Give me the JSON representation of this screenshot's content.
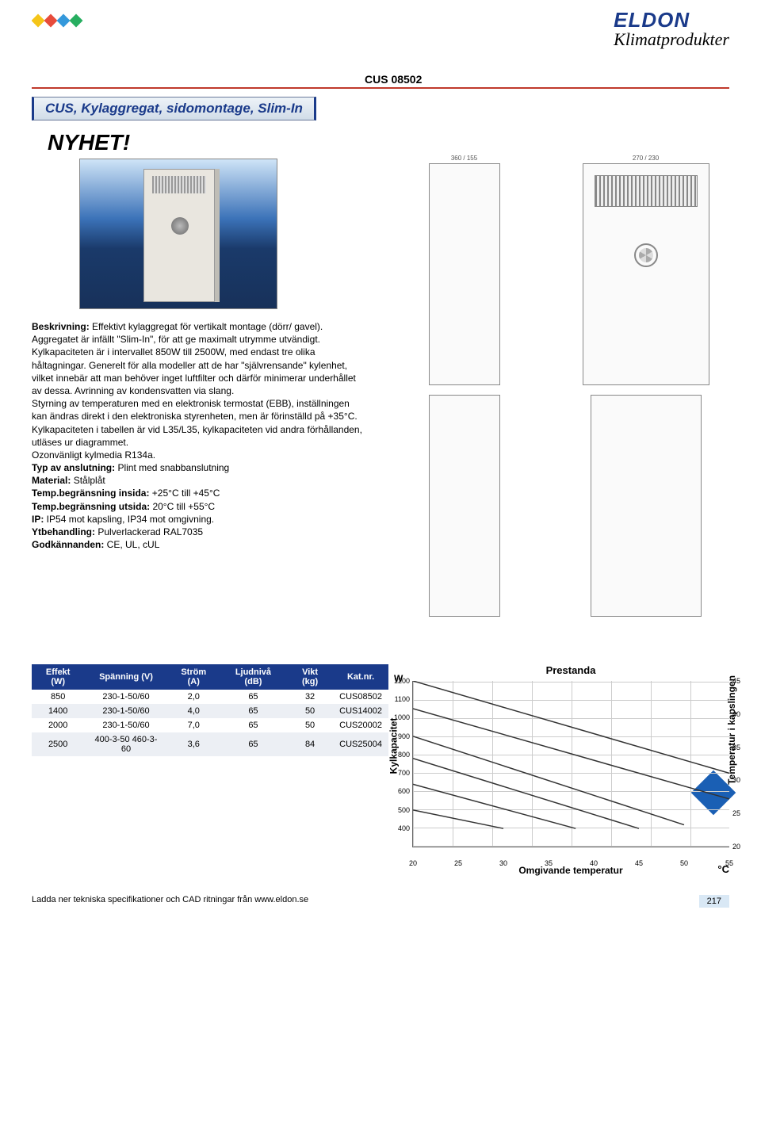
{
  "brand": {
    "name": "ELDON",
    "color": "#1a3a8a",
    "subtitle": "Klimatprodukter"
  },
  "title_bar": "CUS, Kylaggregat, sidomontage, Slim-In",
  "nyhet": "NYHET!",
  "model_code": "CUS 08502",
  "description": {
    "beskrivning_label": "Beskrivning:",
    "beskrivning_text": " Effektivt kylaggregat för vertikalt montage (dörr/ gavel). Aggregatet är infällt \"Slim-In\", för att ge maximalt utrymme utvändigt.",
    "body1": "Kylkapaciteten är i intervallet 850W till 2500W, med endast tre olika håltagningar. Generelt för alla modeller att de har \"självrensande\" kylenhet, vilket innebär att man behöver inget luftfilter och därför minimerar underhållet av dessa. Avrinning av kondensvatten via slang.",
    "body2": "Styrning av temperaturen med en elektronisk termostat (EBB), inställningen kan ändras direkt i den elektroniska styrenheten, men är förinställd på +35°C.",
    "body3": "Kylkapaciteten i tabellen är vid L35/L35, kylkapaciteten vid andra förhållanden, utläses ur diagrammet.",
    "body4": "Ozonvänligt kylmedia R134a.",
    "typ_label": "Typ av anslutning:",
    "typ_value": " Plint med snabbanslutning",
    "material_label": "Material:",
    "material_value": " Stålplåt",
    "temp_in_label": "Temp.begränsning insida:",
    "temp_in_value": " +25°C till +45°C",
    "temp_out_label": "Temp.begränsning utsida:",
    "temp_out_value": " 20°C till +55°C",
    "ip_label": "IP:",
    "ip_value": " IP54 mot kapsling, IP34 mot omgivning.",
    "yt_label": "Ytbehandling:",
    "yt_value": " Pulverlackerad RAL7035",
    "godk_label": "Godkännanden:",
    "godk_value": " CE, UL, cUL"
  },
  "spec_table": {
    "headers": [
      "Effekt (W)",
      "Spänning (V)",
      "Ström (A)",
      "Ljudnivå (dB)",
      "Vikt (kg)",
      "Kat.nr."
    ],
    "rows": [
      [
        "850",
        "230-1-50/60",
        "2,0",
        "65",
        "32",
        "CUS08502"
      ],
      [
        "1400",
        "230-1-50/60",
        "4,0",
        "65",
        "50",
        "CUS14002"
      ],
      [
        "2000",
        "230-1-50/60",
        "7,0",
        "65",
        "50",
        "CUS20002"
      ],
      [
        "2500",
        "400-3-50 460-3-60",
        "3,6",
        "65",
        "84",
        "CUS25004"
      ]
    ]
  },
  "chart": {
    "title": "Prestanda",
    "axis_w": "W",
    "y_label": "Kylkapacitet",
    "y2_label": "Temperatur i kapslingen",
    "x_label": "Omgivande temperatur",
    "deg_c": "°C",
    "y_ticks": [
      400,
      500,
      600,
      700,
      800,
      900,
      1000,
      1100,
      1200
    ],
    "y2_ticks": [
      20,
      25,
      30,
      35,
      40,
      45
    ],
    "x_ticks": [
      20,
      25,
      30,
      35,
      40,
      45,
      50,
      55
    ],
    "xlim": [
      20,
      55
    ],
    "ylim": [
      300,
      1200
    ],
    "y2lim": [
      20,
      45
    ],
    "series": [
      {
        "name": "45",
        "color": "#333",
        "points": [
          [
            20,
            1200
          ],
          [
            55,
            700
          ]
        ]
      },
      {
        "name": "40",
        "color": "#333",
        "points": [
          [
            20,
            1050
          ],
          [
            55,
            560
          ]
        ]
      },
      {
        "name": "35",
        "color": "#333",
        "points": [
          [
            20,
            900
          ],
          [
            50,
            420
          ]
        ]
      },
      {
        "name": "30",
        "color": "#333",
        "points": [
          [
            20,
            780
          ],
          [
            45,
            400
          ]
        ]
      },
      {
        "name": "25",
        "color": "#333",
        "points": [
          [
            20,
            640
          ],
          [
            38,
            400
          ]
        ]
      },
      {
        "name": "20",
        "color": "#333",
        "points": [
          [
            20,
            500
          ],
          [
            30,
            400
          ]
        ]
      }
    ]
  },
  "footer": {
    "text": "Ladda ner tekniska specifikationer och CAD ritningar från www.eldon.se",
    "page": "217"
  }
}
